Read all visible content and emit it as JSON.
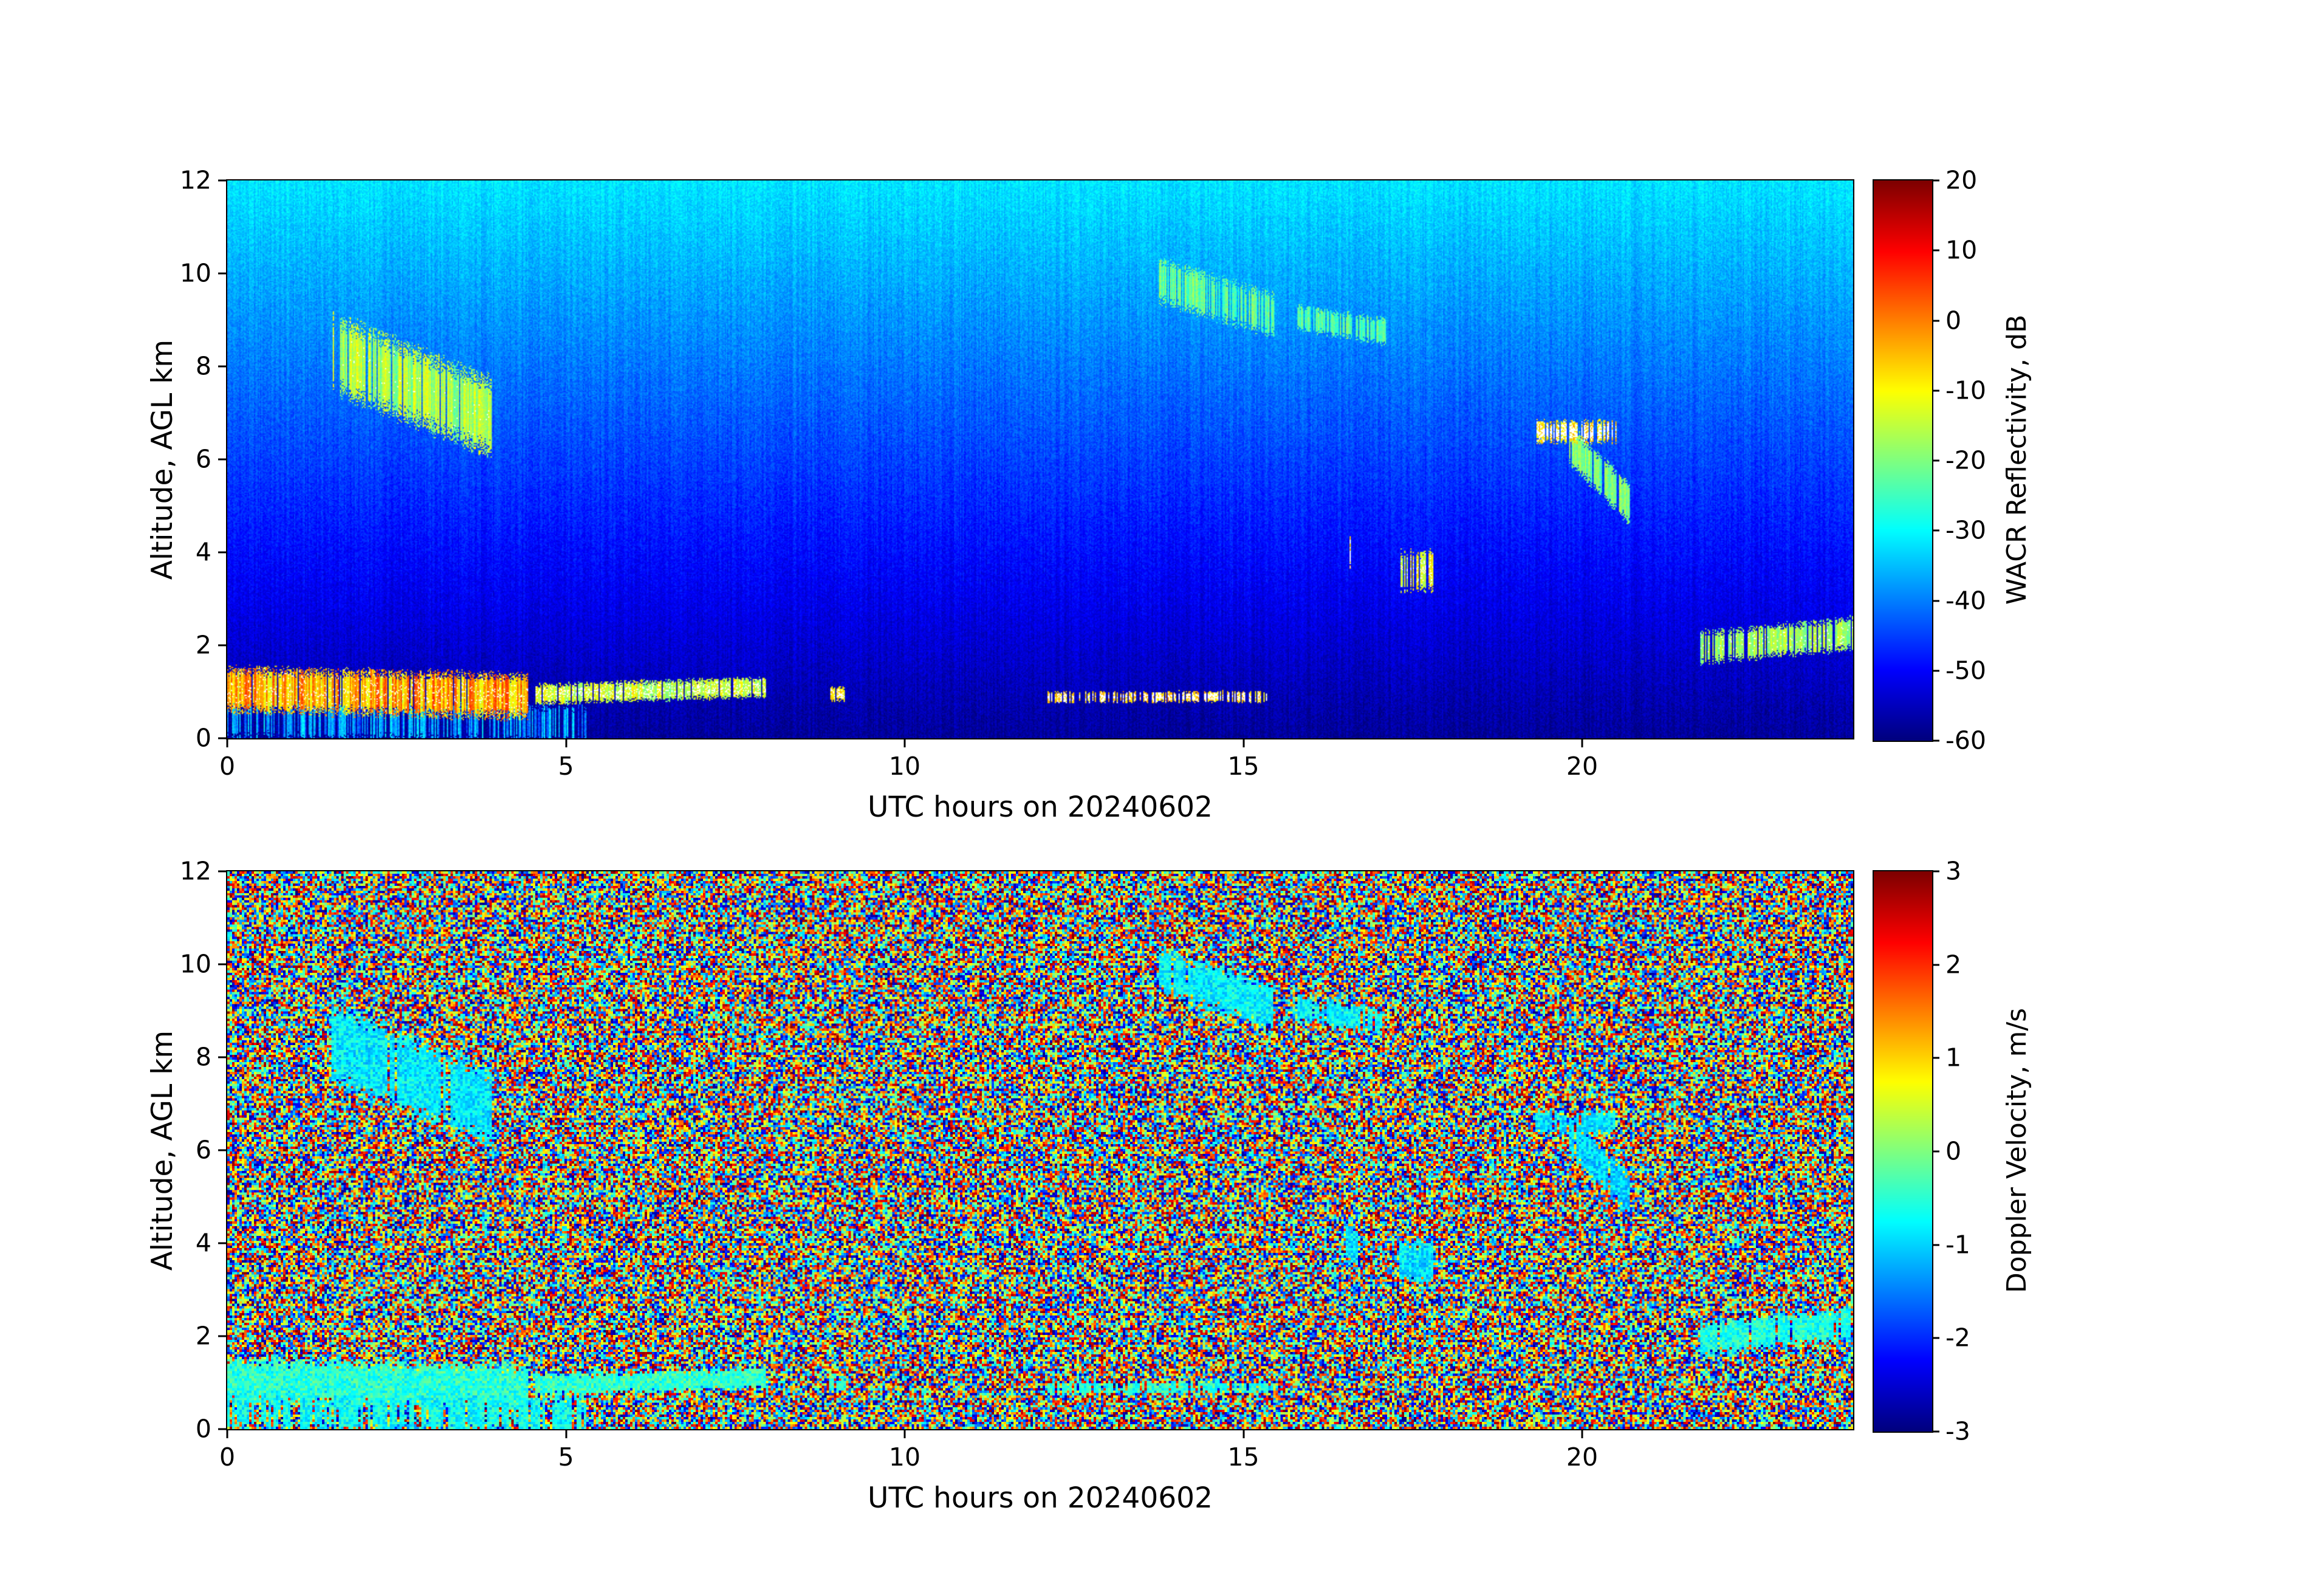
{
  "figure": {
    "background": "#ffffff",
    "description": "Two stacked time-height radar heatmaps from a W-band ARM cloud radar for one UTC day"
  },
  "chart_data": [
    {
      "type": "heatmap",
      "panel": "reflectivity",
      "title": "",
      "xlabel": "UTC hours on 20240602",
      "ylabel": "Altitude, AGL km",
      "xlim": [
        0,
        24
      ],
      "ylim": [
        0,
        12
      ],
      "xticks": [
        0,
        5,
        10,
        15,
        20
      ],
      "yticks": [
        0,
        2,
        4,
        6,
        8,
        10,
        12
      ],
      "grid": false,
      "colorbar": {
        "label": "WACR Reflectivity, dB",
        "min": -60,
        "max": 20,
        "ticks": [
          20,
          10,
          0,
          -10,
          -20,
          -30,
          -40,
          -50,
          -60
        ],
        "colormap": "jet"
      },
      "background_field": {
        "description": "clear-air noise floor gradient: cyan (~-32 dB) at 12 km fading to dark blue (~-58 dB) near the surface with fine vertical speckle striping",
        "value_at_top_dB": -32,
        "value_at_surface_dB": -58
      },
      "masked_color": "#ffffff"
    },
    {
      "type": "heatmap",
      "panel": "doppler-velocity",
      "title": "",
      "xlabel": "UTC hours on 20240602",
      "ylabel": "Altitude, AGL km",
      "xlim": [
        0,
        24
      ],
      "ylim": [
        0,
        12
      ],
      "xticks": [
        0,
        5,
        10,
        15,
        20
      ],
      "yticks": [
        0,
        2,
        4,
        6,
        8,
        10,
        12
      ],
      "grid": false,
      "colorbar": {
        "label": "Doppler Velocity, m/s",
        "min": -3,
        "max": 3,
        "ticks": [
          3,
          2,
          1,
          0,
          -1,
          -2,
          -3
        ],
        "colormap": "jet"
      },
      "background_field": {
        "description": "uniform random speckle noise spanning the full -3 to 3 m/s scale where no cloud signal exists; coherent cyan-green (~ -0.5 to -1 m/s) in cloud features",
        "min": -3,
        "max": 3
      }
    }
  ],
  "cloud_features": [
    {
      "name": "midlevel-virga-02-04utc",
      "t0": 1.55,
      "t1": 3.9,
      "zc0": 8.3,
      "zc1": 6.9,
      "half_km": 0.95,
      "refl_dB": -17,
      "refl_var": 9,
      "vel_ms": -0.85,
      "density": 0.85,
      "white": 0.02
    },
    {
      "name": "cirrus-band-14-15utc",
      "t0": 13.75,
      "t1": 15.45,
      "zc0": 9.85,
      "zc1": 9.1,
      "half_km": 0.55,
      "refl_dB": -22,
      "refl_var": 6,
      "vel_ms": -0.8,
      "density": 0.8,
      "white": 0.0
    },
    {
      "name": "cirrus-band-16-17utc",
      "t0": 15.8,
      "t1": 17.1,
      "zc0": 9.05,
      "zc1": 8.75,
      "half_km": 0.32,
      "refl_dB": -23,
      "refl_var": 5,
      "vel_ms": -0.8,
      "density": 0.75,
      "white": 0.0
    },
    {
      "name": "altocumulus-white-20utc",
      "t0": 19.3,
      "t1": 20.5,
      "zc0": 6.6,
      "zc1": 6.6,
      "half_km": 0.28,
      "refl_dB": -8,
      "refl_var": 6,
      "vel_ms": -0.9,
      "density": 0.7,
      "white": 0.75
    },
    {
      "name": "virga-tail-20utc",
      "t0": 19.8,
      "t1": 20.7,
      "zc0": 6.35,
      "zc1": 5.05,
      "half_km": 0.5,
      "refl_dB": -20,
      "refl_var": 6,
      "vel_ms": -1.0,
      "density": 0.85,
      "white": 0.0
    },
    {
      "name": "shallow-cell-1730utc",
      "t0": 17.3,
      "t1": 17.8,
      "zc0": 3.6,
      "zc1": 3.6,
      "half_km": 0.5,
      "refl_dB": -12,
      "refl_var": 9,
      "vel_ms": -0.9,
      "density": 0.7,
      "white": 0.25
    },
    {
      "name": "white-dash-1640utc",
      "t0": 16.5,
      "t1": 16.72,
      "zc0": 4.1,
      "zc1": 3.8,
      "half_km": 0.5,
      "refl_dB": -5,
      "refl_var": 4,
      "vel_ms": -0.9,
      "density": 0.5,
      "white": 0.8
    },
    {
      "name": "boundary-layer-cloud-0-4utc",
      "t0": 0.0,
      "t1": 4.45,
      "zc0": 1.05,
      "zc1": 0.9,
      "half_km": 0.55,
      "refl_dB": -4,
      "refl_var": 14,
      "vel_ms": -0.5,
      "density": 0.95,
      "white": 0.12
    },
    {
      "name": "subcloud-wisps-0-5utc",
      "t0": 0.0,
      "t1": 5.3,
      "zc0": 0.4,
      "zc1": 0.3,
      "half_km": 0.45,
      "refl_dB": -38,
      "refl_var": 10,
      "vel_ms": -0.7,
      "density": 0.6,
      "white": 0.0
    },
    {
      "name": "stratus-5-8utc",
      "t0": 4.55,
      "t1": 7.95,
      "zc0": 0.95,
      "zc1": 1.1,
      "half_km": 0.25,
      "refl_dB": -14,
      "refl_var": 9,
      "vel_ms": -0.45,
      "density": 0.9,
      "white": 0.3
    },
    {
      "name": "stratus-dashes-12-15utc",
      "t0": 12.1,
      "t1": 15.35,
      "zc0": 0.88,
      "zc1": 0.9,
      "half_km": 0.14,
      "refl_dB": -6,
      "refl_var": 6,
      "vel_ms": -0.5,
      "density": 0.55,
      "white": 0.65
    },
    {
      "name": "low-cloud-22-24utc",
      "t0": 21.75,
      "t1": 24.0,
      "zc0": 1.95,
      "zc1": 2.25,
      "half_km": 0.4,
      "refl_dB": -17,
      "refl_var": 7,
      "vel_ms": -0.6,
      "density": 0.8,
      "white": 0.08
    },
    {
      "name": "cloud-dot-9utc",
      "t0": 8.9,
      "t1": 9.12,
      "zc0": 0.95,
      "zc1": 0.95,
      "half_km": 0.18,
      "refl_dB": -8,
      "refl_var": 5,
      "vel_ms": -0.5,
      "density": 0.8,
      "white": 0.5
    }
  ]
}
